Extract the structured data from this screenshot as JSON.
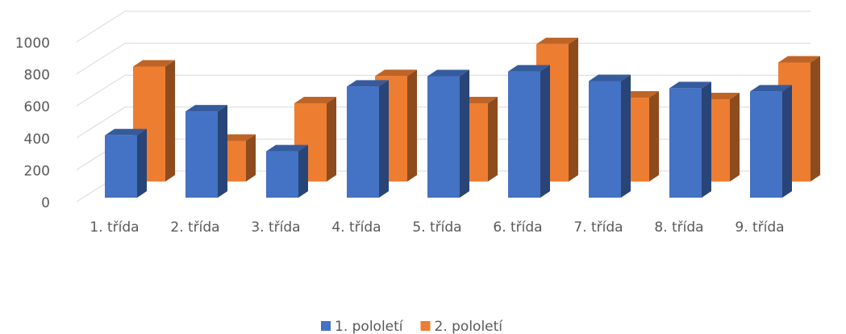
{
  "chart_data": {
    "type": "bar3d",
    "categories": [
      "1. třída",
      "2. třída",
      "3. třída",
      "4. třída",
      "5. třída",
      "6. třída",
      "7. třída",
      "8. třída",
      "9. třída"
    ],
    "series": [
      {
        "name": "1. pololetí",
        "color": "#4472c4",
        "values": [
          390,
          540,
          290,
          695,
          760,
          790,
          730,
          685,
          665
        ]
      },
      {
        "name": "2. pololetí",
        "color": "#ed7d31",
        "values": [
          720,
          255,
          490,
          660,
          490,
          860,
          525,
          515,
          745
        ]
      }
    ],
    "ylim": [
      0,
      1000
    ],
    "yticks": [
      0,
      200,
      400,
      600,
      800,
      1000
    ],
    "grid": true,
    "legend": "bottom"
  }
}
